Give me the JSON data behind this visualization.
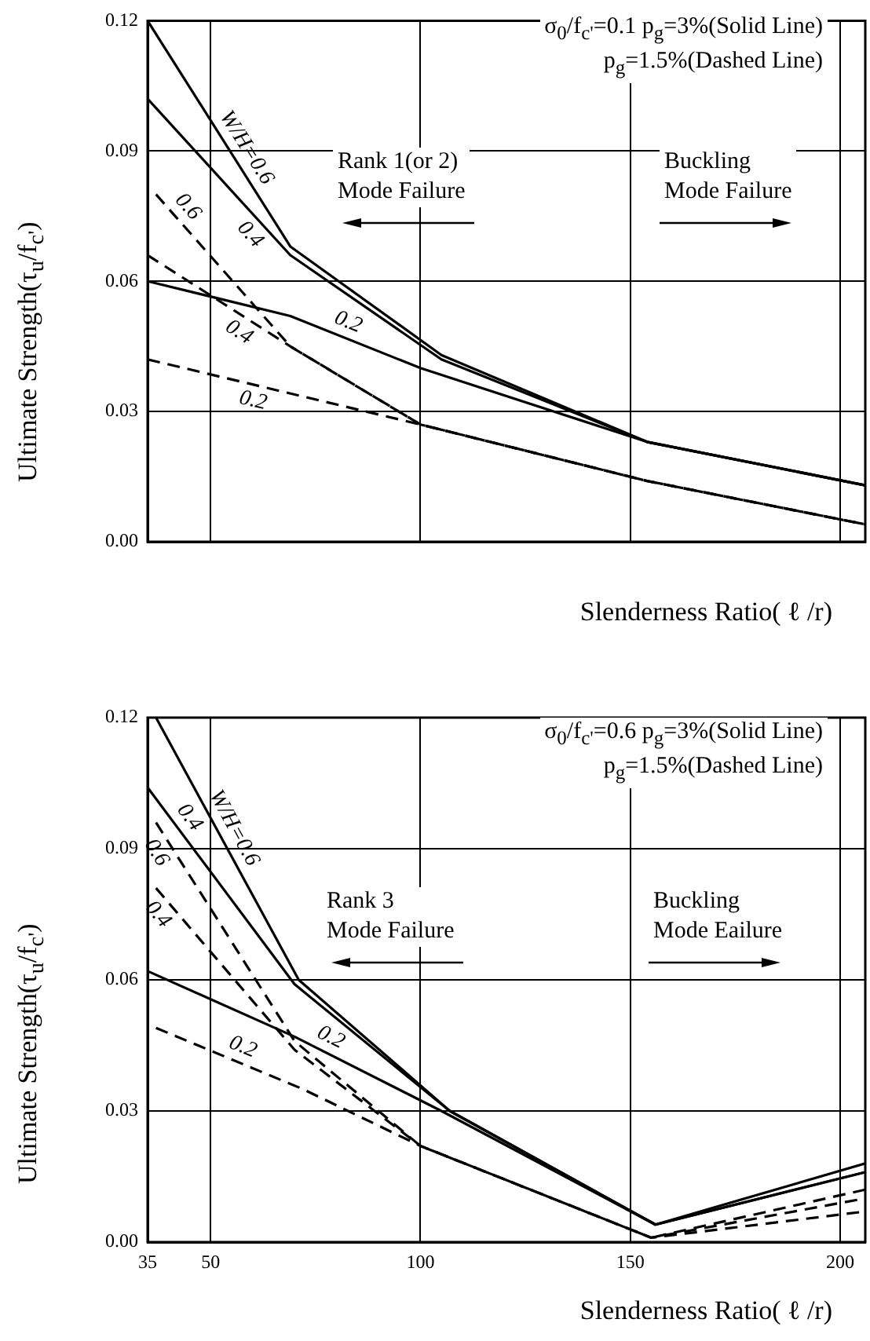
{
  "chart_data": [
    {
      "type": "line",
      "xlabel": "Slenderness Ratio( ℓ /r)",
      "ylabel": "Ultimate Strength(τ$_{u}$/f$_{c'}$)",
      "xlim": [
        35,
        206
      ],
      "xticks": [
        35,
        50,
        100,
        150,
        200
      ],
      "ylim": [
        0,
        0.12
      ],
      "yticks": [
        {
          "value": 0,
          "label": "0.00"
        },
        0.03,
        0.06,
        0.09,
        0.12
      ],
      "grid": true,
      "legend": false,
      "tick_labels": "y",
      "annotations": [
        "σ$_{0}$/f$_{c'}$=0.1  p$_{g}$=3%(Solid Line)",
        "p$_{g}$=1.5%(Dashed Line)",
        "Rank 1(or 2)\nMode Failure",
        "Buckling\nMode Failure"
      ],
      "series": [
        {
          "name": "W/H=0.6",
          "color": "#000000",
          "line_style": "solid",
          "x": [
            35,
            69,
            105,
            154,
            206
          ],
          "values": [
            0.12,
            0.068,
            0.043,
            0.023,
            0.013
          ]
        },
        {
          "name": "0.4",
          "color": "#000000",
          "line_style": "solid",
          "x": [
            35,
            69,
            105,
            154,
            206
          ],
          "values": [
            0.102,
            0.066,
            0.042,
            0.023,
            0.013
          ]
        },
        {
          "name": "0.2",
          "color": "#000000",
          "line_style": "solid",
          "x": [
            35,
            69,
            100,
            154,
            206
          ],
          "values": [
            0.06,
            0.052,
            0.04,
            0.023,
            0.013
          ]
        },
        {
          "name": "0.6",
          "color": "#000000",
          "line_style": "dashed",
          "x": [
            37,
            69,
            100,
            154,
            206
          ],
          "values": [
            0.08,
            0.045,
            0.027,
            0.014,
            0.004
          ]
        },
        {
          "name": "0.4",
          "color": "#000000",
          "line_style": "dashed",
          "x": [
            35,
            69,
            100,
            154,
            206
          ],
          "values": [
            0.066,
            0.045,
            0.027,
            0.014,
            0.004
          ]
        },
        {
          "name": "0.2",
          "color": "#000000",
          "line_style": "dashed",
          "x": [
            35,
            100,
            154,
            206
          ],
          "values": [
            0.042,
            0.027,
            0.014,
            0.004
          ]
        }
      ]
    },
    {
      "type": "line",
      "xlabel": "Slenderness Ratio( ℓ /r)",
      "ylabel": "Ultimate Strength(τ$_{u}$/f$_{c'}$)",
      "xlim": [
        35,
        206
      ],
      "xticks": [
        35,
        50,
        100,
        150,
        200
      ],
      "ylim": [
        0,
        0.12
      ],
      "yticks": [
        {
          "value": 0,
          "label": "0.00"
        },
        0.03,
        0.06,
        0.09,
        0.12
      ],
      "grid": true,
      "legend": false,
      "annotations": [
        "σ$_{0}$/f$_{c'}$=0.6  p$_{g}$=3%(Solid Line)",
        "p$_{g}$=1.5%(Dashed Line)",
        "Rank 3\nMode Failure",
        "Buckling\nMode Eailure"
      ],
      "series": [
        {
          "name": "W/H=0.6",
          "color": "#000000",
          "line_style": "solid",
          "x": [
            37,
            71,
            107,
            156,
            206
          ],
          "values": [
            0.12,
            0.06,
            0.03,
            0.004,
            0.018
          ]
        },
        {
          "name": "0.4",
          "color": "#000000",
          "line_style": "solid",
          "x": [
            35,
            70,
            107,
            156,
            206
          ],
          "values": [
            0.104,
            0.059,
            0.03,
            0.004,
            0.016
          ]
        },
        {
          "name": "0.2",
          "color": "#000000",
          "line_style": "solid",
          "x": [
            35,
            70,
            105,
            156,
            206
          ],
          "values": [
            0.062,
            0.047,
            0.03,
            0.004,
            0.016
          ]
        },
        {
          "name": "0.6",
          "color": "#000000",
          "line_style": "dashed",
          "x": [
            37,
            70,
            100,
            155,
            206
          ],
          "values": [
            0.096,
            0.046,
            0.022,
            0.001,
            0.012
          ]
        },
        {
          "name": "0.4",
          "color": "#000000",
          "line_style": "dashed",
          "x": [
            37,
            70,
            100,
            155,
            206
          ],
          "values": [
            0.081,
            0.044,
            0.022,
            0.001,
            0.01
          ]
        },
        {
          "name": "0.2",
          "color": "#000000",
          "line_style": "dashed",
          "x": [
            37,
            72,
            100,
            155,
            206
          ],
          "values": [
            0.049,
            0.035,
            0.022,
            0.001,
            0.007
          ]
        }
      ]
    }
  ]
}
